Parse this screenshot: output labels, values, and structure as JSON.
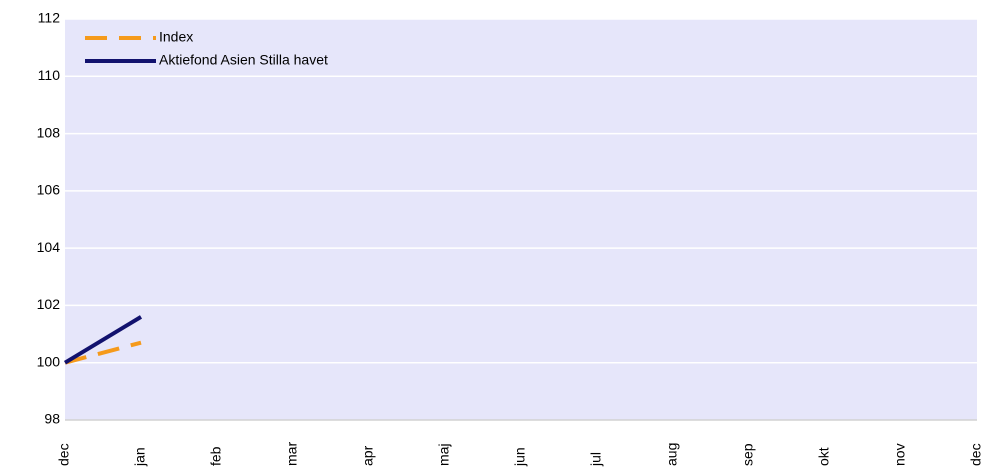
{
  "chart_data": {
    "type": "line",
    "categories": [
      "dec",
      "jan",
      "feb",
      "mar",
      "apr",
      "maj",
      "jun",
      "jul",
      "aug",
      "sep",
      "okt",
      "nov",
      "dec"
    ],
    "series": [
      {
        "name": "Index",
        "color": "#f59a1b",
        "dashed": true,
        "values": [
          100,
          100.7,
          null,
          null,
          null,
          null,
          null,
          null,
          null,
          null,
          null,
          null,
          null
        ]
      },
      {
        "name": "Aktiefond Asien Stilla havet",
        "color": "#12126e",
        "dashed": false,
        "values": [
          100,
          101.6,
          null,
          null,
          null,
          null,
          null,
          null,
          null,
          null,
          null,
          null,
          null
        ]
      }
    ],
    "ylim": [
      98,
      112
    ],
    "yticks": [
      98,
      100,
      102,
      104,
      106,
      108,
      110,
      112
    ],
    "grid": true,
    "legend": "top-left"
  }
}
